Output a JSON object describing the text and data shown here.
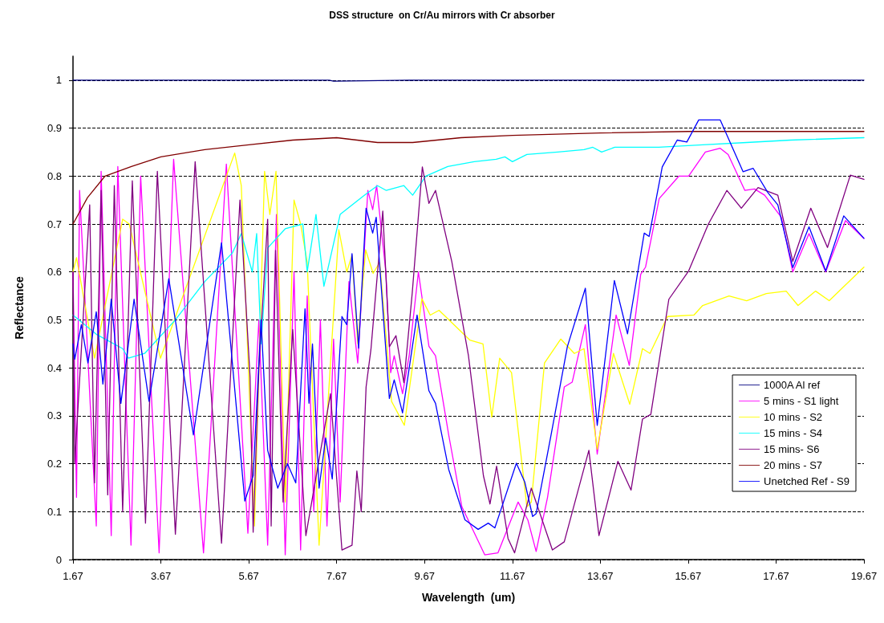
{
  "chart_data": {
    "type": "line",
    "title": "DSS structure  on Cr/Au mirrors with Cr absorber",
    "xlabel": "Wavelength  (um)",
    "ylabel": "Reflectance",
    "xlim": [
      1.67,
      19.67
    ],
    "xticks": [
      1.67,
      3.67,
      5.67,
      7.67,
      9.67,
      11.67,
      13.67,
      15.67,
      17.67,
      19.67
    ],
    "ylim": [
      0,
      1.05
    ],
    "yticks": [
      0,
      0.1,
      0.2,
      0.3,
      0.4,
      0.5,
      0.6,
      0.7,
      0.8,
      0.9,
      1
    ],
    "grid": "y",
    "legend": "bottom right",
    "marker": "none",
    "line_style": "solid",
    "series": [
      {
        "name": "1000A Al ref",
        "color": "#000080",
        "x": [
          1.67,
          7.5,
          7.6,
          9.5,
          19.67
        ],
        "values": [
          1,
          1,
          0.998,
          1,
          1
        ]
      },
      {
        "name": "5 mins - S1 light",
        "color": "#ff00ff",
        "x": [
          1.67,
          1.75,
          1.82,
          2.2,
          2.31,
          2.54,
          2.69,
          2.99,
          3.21,
          3.63,
          3.96,
          4.64,
          5.16,
          5.65,
          5.9,
          6.1,
          6.3,
          6.5,
          6.7,
          6.85,
          7.0,
          7.15,
          7.3,
          7.45,
          7.6,
          7.75,
          7.95,
          8.15,
          8.38,
          8.49,
          8.58,
          8.79,
          8.9,
          8.98,
          9.17,
          9.32,
          9.53,
          9.77,
          9.92,
          10.22,
          10.52,
          11.04,
          11.34,
          11.8,
          12.02,
          12.21,
          12.47,
          12.85,
          13.03,
          13.33,
          13.6,
          14.03,
          14.33,
          14.59,
          14.7,
          15.01,
          15.46,
          15.68,
          16.06,
          16.4,
          16.58,
          16.96,
          17.18,
          17.41,
          17.79,
          18.05,
          18.42,
          18.8,
          19.25,
          19.67
        ],
        "values": [
          0.6,
          0.13,
          0.77,
          0.07,
          0.81,
          0.05,
          0.82,
          0.03,
          0.8,
          0.014,
          0.835,
          0.014,
          0.825,
          0.055,
          0.5,
          0.03,
          0.72,
          0.01,
          0.6,
          0.02,
          0.55,
          0.1,
          0.5,
          0.07,
          0.46,
          0.12,
          0.58,
          0.41,
          0.77,
          0.73,
          0.78,
          0.6,
          0.39,
          0.425,
          0.346,
          0.425,
          0.6,
          0.445,
          0.425,
          0.26,
          0.11,
          0.01,
          0.014,
          0.12,
          0.083,
          0.017,
          0.13,
          0.36,
          0.37,
          0.49,
          0.22,
          0.51,
          0.405,
          0.595,
          0.61,
          0.753,
          0.8,
          0.8,
          0.85,
          0.858,
          0.845,
          0.77,
          0.773,
          0.76,
          0.714,
          0.6,
          0.68,
          0.6,
          0.707,
          0.67
        ]
      },
      {
        "name": "10 mins - S2",
        "color": "#ffff00",
        "x": [
          1.67,
          1.75,
          2.16,
          2.8,
          2.95,
          3.66,
          5.35,
          5.5,
          5.8,
          6.03,
          6.15,
          6.29,
          6.5,
          6.7,
          6.85,
          7.0,
          7.27,
          7.72,
          7.9,
          8.02,
          8.15,
          8.33,
          8.5,
          8.65,
          8.92,
          9.21,
          9.61,
          9.8,
          10.0,
          10.7,
          11.0,
          11.2,
          11.38,
          11.65,
          12.0,
          12.1,
          12.4,
          12.55,
          12.77,
          13.08,
          13.3,
          13.6,
          13.97,
          14.34,
          14.63,
          14.8,
          15.2,
          15.8,
          16.0,
          16.6,
          17.0,
          17.45,
          17.9,
          18.17,
          18.57,
          18.88,
          19.67
        ],
        "values": [
          0.6,
          0.63,
          0.42,
          0.71,
          0.7,
          0.42,
          0.848,
          0.78,
          0.07,
          0.81,
          0.72,
          0.81,
          0.12,
          0.75,
          0.7,
          0.62,
          0.03,
          0.688,
          0.6,
          0.635,
          0.45,
          0.646,
          0.597,
          0.62,
          0.33,
          0.28,
          0.544,
          0.51,
          0.52,
          0.458,
          0.45,
          0.297,
          0.42,
          0.39,
          0.11,
          0.12,
          0.41,
          0.43,
          0.46,
          0.43,
          0.44,
          0.23,
          0.43,
          0.324,
          0.44,
          0.43,
          0.507,
          0.51,
          0.53,
          0.55,
          0.54,
          0.555,
          0.56,
          0.53,
          0.56,
          0.54,
          0.61
        ]
      },
      {
        "name": "15 mins - S4",
        "color": "#00ffff",
        "x": [
          1.67,
          2.2,
          2.8,
          2.93,
          3.3,
          4.0,
          4.67,
          5.3,
          5.5,
          5.75,
          5.85,
          5.95,
          6.1,
          6.5,
          6.9,
          7.0,
          7.2,
          7.38,
          7.75,
          8.3,
          8.6,
          8.8,
          9.2,
          9.4,
          9.7,
          10.2,
          10.8,
          11.3,
          11.5,
          11.67,
          12.0,
          12.7,
          13.3,
          13.5,
          13.7,
          14.0,
          15.0,
          16.0,
          17.0,
          18.0,
          19.67
        ],
        "values": [
          0.51,
          0.47,
          0.44,
          0.42,
          0.43,
          0.5,
          0.58,
          0.64,
          0.68,
          0.6,
          0.68,
          0.45,
          0.65,
          0.69,
          0.7,
          0.6,
          0.72,
          0.57,
          0.72,
          0.76,
          0.78,
          0.77,
          0.78,
          0.76,
          0.8,
          0.82,
          0.83,
          0.835,
          0.84,
          0.83,
          0.845,
          0.85,
          0.855,
          0.86,
          0.85,
          0.86,
          0.86,
          0.865,
          0.87,
          0.875,
          0.88
        ]
      },
      {
        "name": "15 mins- S6",
        "color": "#800080",
        "x": [
          1.67,
          1.71,
          2.05,
          2.16,
          2.31,
          2.46,
          2.61,
          2.8,
          3.02,
          3.32,
          3.59,
          4.0,
          4.45,
          5.05,
          5.47,
          5.7,
          5.77,
          5.9,
          6.1,
          6.18,
          6.28,
          6.45,
          6.67,
          6.97,
          7.53,
          7.79,
          8.02,
          8.13,
          8.23,
          8.34,
          8.45,
          8.72,
          8.87,
          9.02,
          9.2,
          9.39,
          9.62,
          9.77,
          9.92,
          10.29,
          10.67,
          11.01,
          11.16,
          11.31,
          11.57,
          11.72,
          12.1,
          12.58,
          12.85,
          13.41,
          13.64,
          14.07,
          14.37,
          14.63,
          14.82,
          15.23,
          15.68,
          16.13,
          16.55,
          16.88,
          17.26,
          17.71,
          18.05,
          18.46,
          18.84,
          19.36,
          19.67
        ],
        "values": [
          0.6,
          0.2,
          0.74,
          0.16,
          0.77,
          0.135,
          0.78,
          0.1,
          0.79,
          0.076,
          0.81,
          0.053,
          0.83,
          0.034,
          0.75,
          0.38,
          0.057,
          0.4,
          0.71,
          0.07,
          0.645,
          0.12,
          0.48,
          0.05,
          0.346,
          0.02,
          0.03,
          0.185,
          0.1,
          0.36,
          0.438,
          0.727,
          0.444,
          0.467,
          0.369,
          0.556,
          0.819,
          0.743,
          0.77,
          0.622,
          0.425,
          0.175,
          0.116,
          0.195,
          0.044,
          0.014,
          0.149,
          0.02,
          0.037,
          0.228,
          0.05,
          0.205,
          0.145,
          0.293,
          0.303,
          0.543,
          0.602,
          0.7,
          0.77,
          0.733,
          0.776,
          0.76,
          0.622,
          0.733,
          0.651,
          0.802,
          0.793
        ]
      },
      {
        "name": "20 mins - S7",
        "color": "#800000",
        "x": [
          1.67,
          2.0,
          2.4,
          3.0,
          3.67,
          4.67,
          5.67,
          6.67,
          7.67,
          8.6,
          9.4,
          10.5,
          11.67,
          13.67,
          15.67,
          19.67
        ],
        "values": [
          0.7,
          0.755,
          0.8,
          0.82,
          0.84,
          0.855,
          0.865,
          0.875,
          0.88,
          0.87,
          0.87,
          0.88,
          0.885,
          0.89,
          0.893,
          0.893
        ]
      },
      {
        "name": "Unetched Ref - S9",
        "color": "#0000ff",
        "x": [
          1.67,
          1.71,
          1.86,
          2.01,
          2.2,
          2.35,
          2.54,
          2.76,
          3.06,
          3.4,
          3.85,
          4.41,
          5.05,
          5.58,
          5.77,
          5.95,
          6.1,
          6.33,
          6.55,
          6.74,
          6.95,
          7.04,
          7.12,
          7.27,
          7.42,
          7.57,
          7.79,
          7.9,
          8.02,
          8.17,
          8.34,
          8.49,
          8.57,
          8.87,
          8.98,
          9.17,
          9.5,
          9.77,
          9.92,
          10.22,
          10.59,
          10.89,
          11.12,
          11.27,
          11.76,
          11.95,
          12.13,
          12.21,
          12.55,
          12.92,
          13.33,
          13.6,
          13.99,
          14.29,
          14.67,
          14.78,
          15.08,
          15.42,
          15.64,
          15.91,
          16.4,
          16.92,
          17.15,
          17.48,
          17.71,
          18.05,
          18.42,
          18.8,
          19.21,
          19.67
        ],
        "values": [
          0.45,
          0.418,
          0.49,
          0.41,
          0.517,
          0.366,
          0.543,
          0.326,
          0.543,
          0.33,
          0.586,
          0.26,
          0.661,
          0.122,
          0.175,
          0.5,
          0.228,
          0.149,
          0.2,
          0.16,
          0.523,
          0.326,
          0.45,
          0.149,
          0.254,
          0.168,
          0.507,
          0.49,
          0.638,
          0.441,
          0.733,
          0.681,
          0.714,
          0.336,
          0.375,
          0.306,
          0.51,
          0.352,
          0.326,
          0.188,
          0.083,
          0.063,
          0.076,
          0.066,
          0.201,
          0.162,
          0.09,
          0.096,
          0.26,
          0.444,
          0.566,
          0.28,
          0.582,
          0.471,
          0.681,
          0.674,
          0.819,
          0.875,
          0.871,
          0.917,
          0.917,
          0.809,
          0.816,
          0.766,
          0.74,
          0.609,
          0.694,
          0.602,
          0.717,
          0.67
        ]
      }
    ]
  }
}
